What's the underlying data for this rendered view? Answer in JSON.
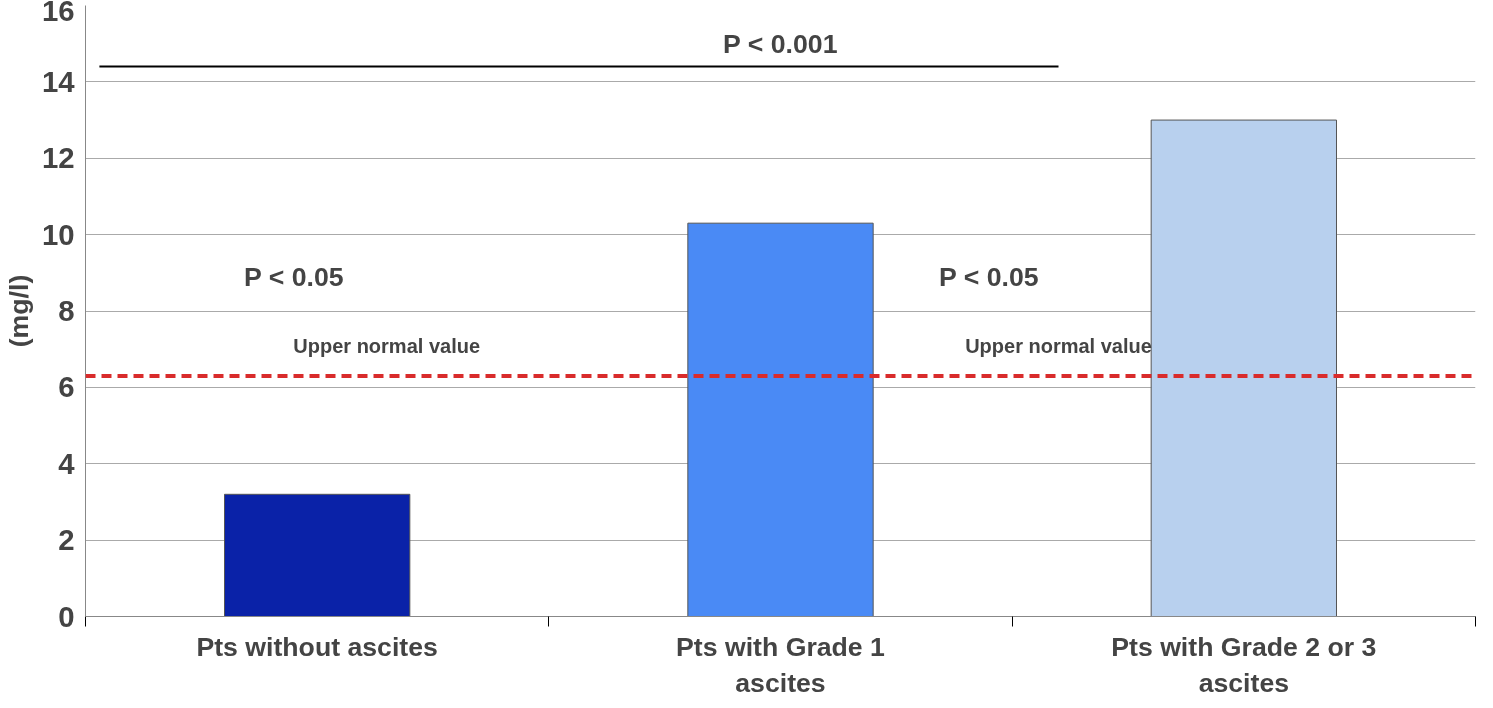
{
  "chart_data": {
    "type": "bar",
    "ylabel": "(mg/l)",
    "categories": [
      "Pts without ascites",
      "Pts with Grade 1 ascites",
      "Pts with Grade 2 or 3 ascites"
    ],
    "values": [
      3.2,
      10.3,
      13.0
    ],
    "colors": [
      "#0a22a8",
      "#4a8af5",
      "#b8d0ee"
    ],
    "ylim": [
      0,
      16
    ],
    "yticks": [
      0,
      2,
      4,
      6,
      8,
      10,
      12,
      14,
      16
    ],
    "grid": "y",
    "ref_lines": [
      {
        "axis": "y",
        "value": 6.3,
        "color": "#d92b2b",
        "line_style": "dashed"
      }
    ],
    "annotations": [
      "P < 0.001",
      "P < 0.05",
      "P < 0.05",
      "Upper normal value",
      "Upper normal value"
    ]
  }
}
